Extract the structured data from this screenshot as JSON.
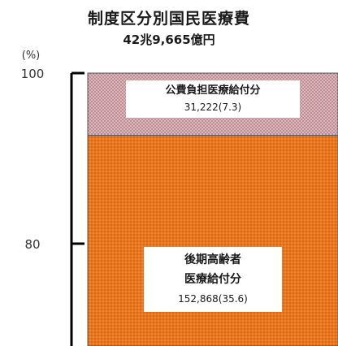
{
  "chart_data": {
    "type": "bar",
    "title": "制度区分別国民医療費",
    "subtitle": "42兆9,665億円",
    "ylabel": "(%)",
    "ylim": [
      70,
      100
    ],
    "y_ticks": [
      "80",
      "100"
    ],
    "segments": [
      {
        "lines": [
          "公費負担医療給付分",
          "31,222(7.3)"
        ],
        "amount": 31222,
        "percent": 7.3,
        "color": "#d9b0b5"
      },
      {
        "lines": [
          "後期高齢者",
          "医療給付分",
          "152,868(35.6)"
        ],
        "amount": 152868,
        "percent": 35.6,
        "color": "#e8731a"
      }
    ]
  }
}
